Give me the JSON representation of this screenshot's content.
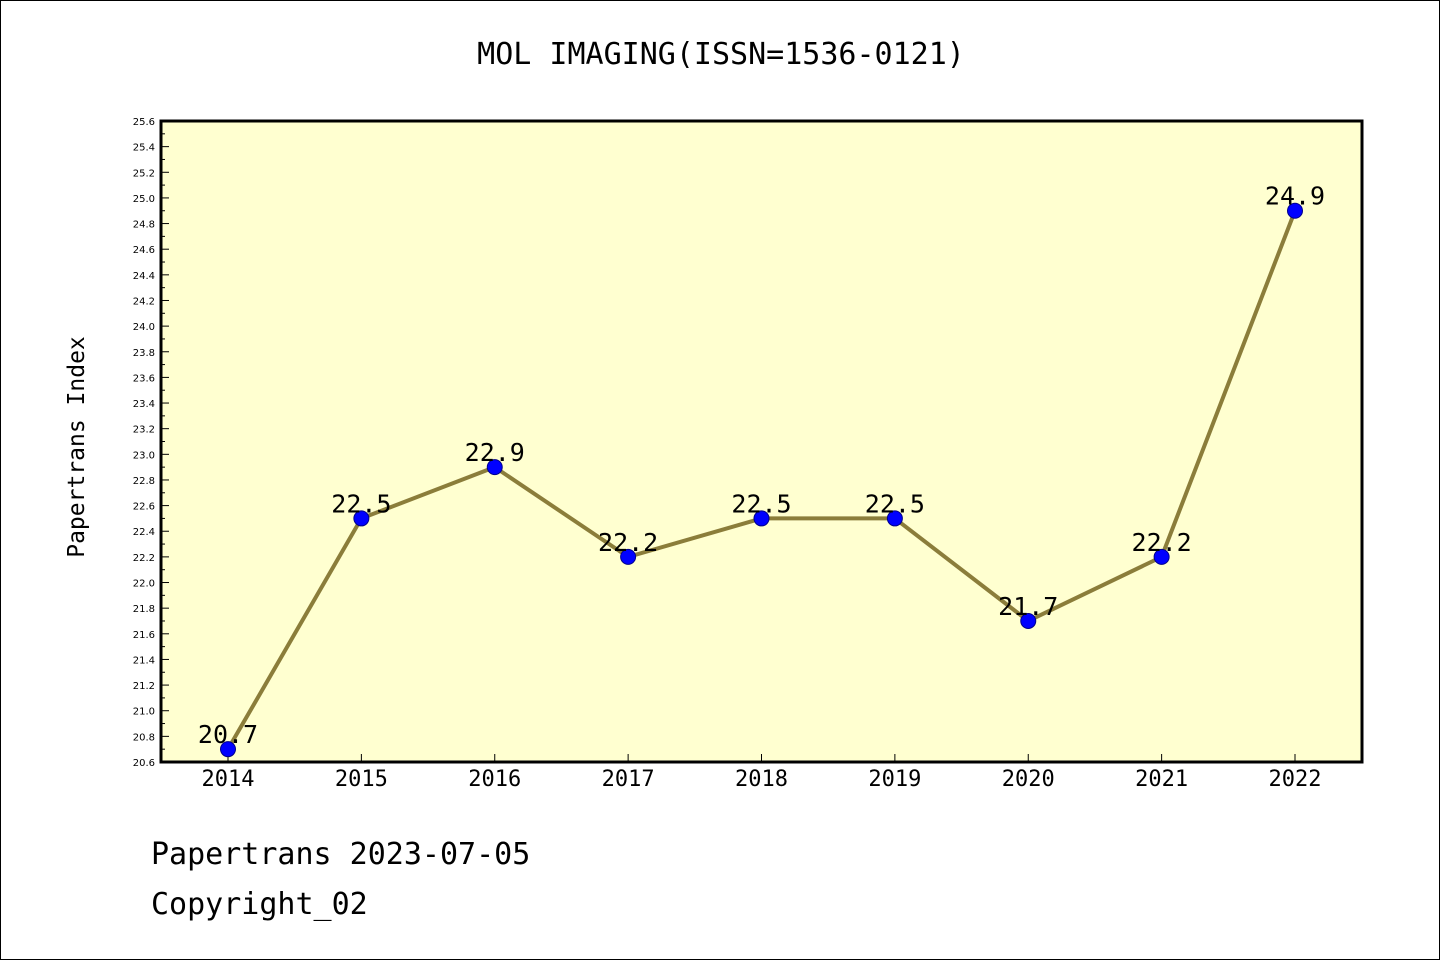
{
  "chart_data": {
    "type": "line",
    "title": "MOL IMAGING(ISSN=1536-0121)",
    "xlabel": "",
    "ylabel": "Papertrans Index",
    "categories": [
      "2014",
      "2015",
      "2016",
      "2017",
      "2018",
      "2019",
      "2020",
      "2021",
      "2022"
    ],
    "series": [
      {
        "values": [
          20.7,
          22.5,
          22.9,
          22.2,
          22.5,
          22.5,
          21.7,
          22.2,
          24.9
        ],
        "data_labels": [
          "20.7",
          "22.5",
          "22.9",
          "22.2",
          "22.5",
          "22.5",
          "21.7",
          "22.2",
          "24.9"
        ],
        "line_color": "#8b7d3a",
        "marker_color": "#0000ff"
      }
    ],
    "ylim": [
      20.6,
      25.6
    ],
    "y_ticks": [
      "20.6",
      "20.8",
      "21.0",
      "21.2",
      "21.4",
      "21.6",
      "21.8",
      "22.0",
      "22.2",
      "22.4",
      "22.6",
      "22.8",
      "23.0",
      "23.2",
      "23.4",
      "23.6",
      "23.8",
      "24.0",
      "24.2",
      "24.4",
      "24.6",
      "24.8",
      "25.0",
      "25.2",
      "25.4",
      "25.6"
    ],
    "grid": false,
    "plot_background": "#ffffd0"
  },
  "footer": {
    "date_line": "Papertrans 2023-07-05",
    "copyright_line": "Copyright_02"
  }
}
